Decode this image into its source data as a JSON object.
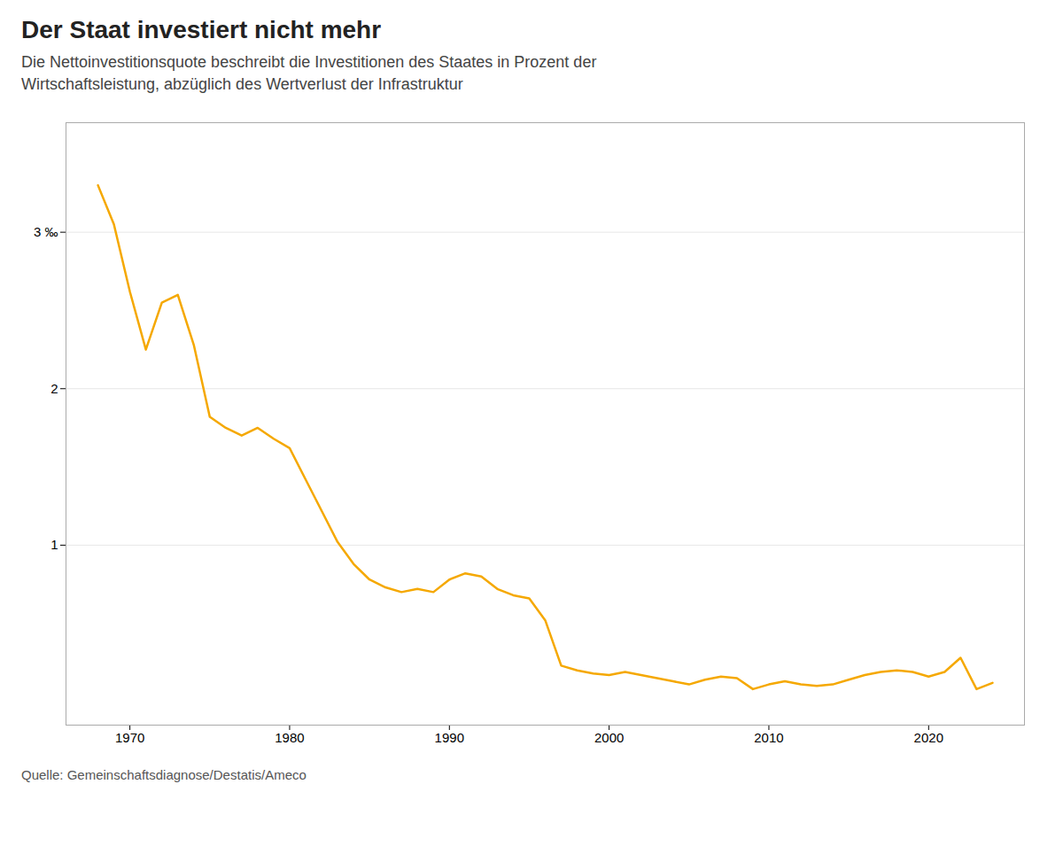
{
  "chart_data": {
    "type": "line",
    "title": "Der Staat investiert nicht mehr",
    "subtitle": [
      "Die Nettoinvestitionsquote beschreibt die Investitionen des Staates in Prozent der",
      "Wirtschaftsleistung, abzüglich des Wertverlust der Infrastruktur"
    ],
    "source": "Quelle: Gemeinschaftsdiagnose/Destatis/Ameco",
    "color": "#F5A800",
    "x": [
      1968,
      1969,
      1970,
      1971,
      1972,
      1973,
      1974,
      1975,
      1976,
      1977,
      1978,
      1979,
      1980,
      1981,
      1982,
      1983,
      1984,
      1985,
      1986,
      1987,
      1988,
      1989,
      1990,
      1991,
      1992,
      1993,
      1994,
      1995,
      1996,
      1997,
      1998,
      1999,
      2000,
      2001,
      2002,
      2003,
      2004,
      2005,
      2006,
      2007,
      2008,
      2009,
      2010,
      2011,
      2012,
      2013,
      2014,
      2015,
      2016,
      2017,
      2018,
      2019,
      2020,
      2021,
      2022,
      2023,
      2024
    ],
    "values": [
      3.3,
      3.05,
      2.62,
      2.25,
      2.55,
      2.6,
      2.28,
      1.82,
      1.75,
      1.7,
      1.75,
      1.68,
      1.62,
      1.42,
      1.22,
      1.02,
      0.88,
      0.78,
      0.73,
      0.7,
      0.72,
      0.7,
      0.78,
      0.82,
      0.8,
      0.72,
      0.68,
      0.66,
      0.52,
      0.23,
      0.2,
      0.18,
      0.17,
      0.19,
      0.17,
      0.15,
      0.13,
      0.11,
      0.14,
      0.16,
      0.15,
      0.08,
      0.11,
      0.13,
      0.11,
      0.1,
      0.11,
      0.14,
      0.17,
      0.19,
      0.2,
      0.19,
      0.16,
      0.19,
      0.28,
      0.08,
      0.12
    ],
    "xlim": [
      1966,
      2026
    ],
    "xticks": [
      1970,
      1980,
      1990,
      2000,
      2010,
      2020
    ],
    "ylim": [
      -0.15,
      3.7
    ],
    "yticks": [
      1,
      2,
      {
        "value": 3,
        "label": "3 ‰"
      }
    ],
    "grid": "y"
  }
}
